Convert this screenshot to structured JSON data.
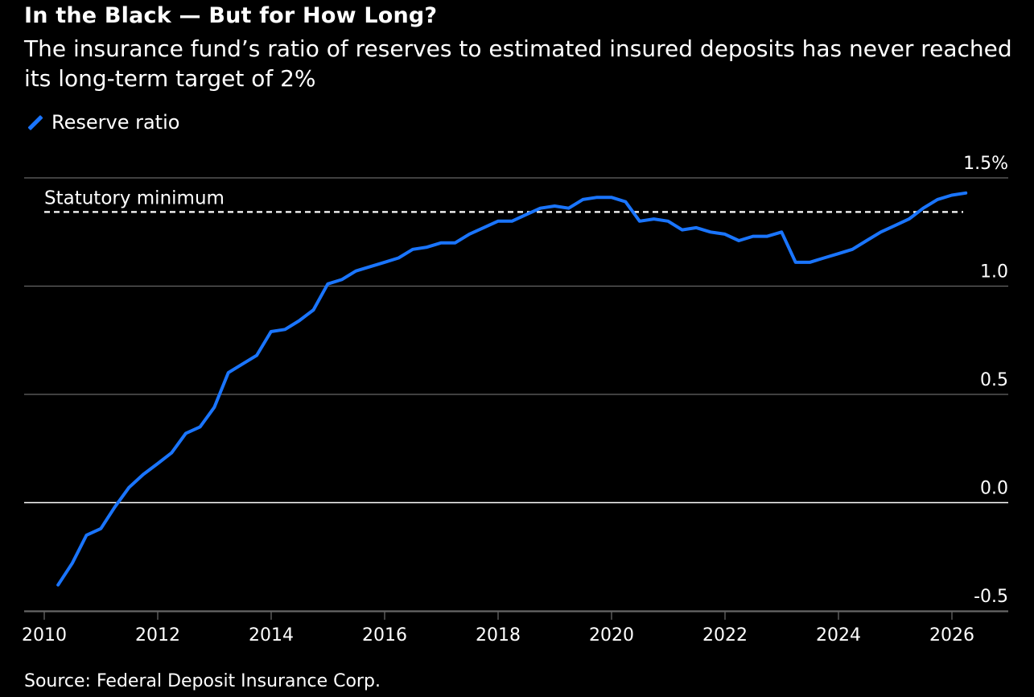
{
  "title": "In the Black — But for How Long?",
  "subtitle": "The insurance fund’s ratio of reserves to estimated insured deposits has never reached its long-term target of 2%",
  "source": "Source: Federal Deposit Insurance Corp.",
  "colors": {
    "background": "#000000",
    "series": "#1a75ff",
    "grid": "#666666",
    "zero_line": "#ffffff",
    "text": "#ffffff"
  },
  "chart_data": {
    "type": "line",
    "legend": {
      "placement": "top-left",
      "entries": [
        "Reserve ratio"
      ]
    },
    "x_ticks": [
      "2010",
      "2012",
      "2014",
      "2016",
      "2018",
      "2020",
      "2022",
      "2024",
      "2026"
    ],
    "y_ticks": [
      "1.5%",
      "1.0",
      "0.5",
      "0.0",
      "-0.5"
    ],
    "y_tick_values": [
      1.5,
      1.0,
      0.5,
      0.0,
      -0.5
    ],
    "xlim": [
      "2010-01-01",
      "2027-06-30"
    ],
    "ylim": [
      -0.5,
      1.5
    ],
    "grid": true,
    "reference_line": {
      "label": "Statutory minimum",
      "y": 1.35,
      "style": "dashed"
    },
    "series": [
      {
        "name": "Reserve ratio",
        "x": [
          "2010-03-31",
          "2010-06-30",
          "2010-09-30",
          "2010-12-31",
          "2011-03-31",
          "2011-06-30",
          "2011-09-30",
          "2011-12-31",
          "2012-03-31",
          "2012-06-30",
          "2012-09-30",
          "2012-12-31",
          "2013-03-31",
          "2013-06-30",
          "2013-09-30",
          "2013-12-31",
          "2014-03-31",
          "2014-06-30",
          "2014-09-30",
          "2014-12-31",
          "2015-03-31",
          "2015-06-30",
          "2015-09-30",
          "2015-12-31",
          "2016-03-31",
          "2016-06-30",
          "2016-09-30",
          "2016-12-31",
          "2017-03-31",
          "2017-06-30",
          "2017-09-30",
          "2017-12-31",
          "2018-03-31",
          "2018-06-30",
          "2018-09-30",
          "2018-12-31",
          "2019-03-31",
          "2019-06-30",
          "2019-09-30",
          "2019-12-31",
          "2020-03-31",
          "2020-06-30",
          "2020-09-30",
          "2020-12-31",
          "2021-03-31",
          "2021-06-30",
          "2021-09-30",
          "2021-12-31",
          "2022-03-31",
          "2022-06-30",
          "2022-09-30",
          "2022-12-31",
          "2023-03-31",
          "2023-06-30",
          "2023-09-30",
          "2023-12-31",
          "2024-03-31",
          "2024-06-30",
          "2024-09-30",
          "2024-12-31",
          "2025-03-31",
          "2025-06-30",
          "2025-09-30",
          "2025-12-31",
          "2026-03-31"
        ],
        "values": [
          -0.38,
          -0.28,
          -0.15,
          -0.12,
          -0.02,
          0.07,
          0.13,
          0.18,
          0.23,
          0.32,
          0.35,
          0.44,
          0.6,
          0.64,
          0.68,
          0.79,
          0.8,
          0.84,
          0.89,
          1.01,
          1.03,
          1.07,
          1.09,
          1.11,
          1.13,
          1.17,
          1.18,
          1.2,
          1.2,
          1.24,
          1.27,
          1.3,
          1.3,
          1.33,
          1.36,
          1.37,
          1.36,
          1.4,
          1.41,
          1.41,
          1.39,
          1.3,
          1.31,
          1.3,
          1.26,
          1.27,
          1.25,
          1.24,
          1.21,
          1.23,
          1.23,
          1.25,
          1.11,
          1.11,
          1.13,
          1.15,
          1.17,
          1.21,
          1.25,
          1.28,
          1.31,
          1.36,
          1.4,
          1.42,
          1.43
        ]
      }
    ]
  }
}
